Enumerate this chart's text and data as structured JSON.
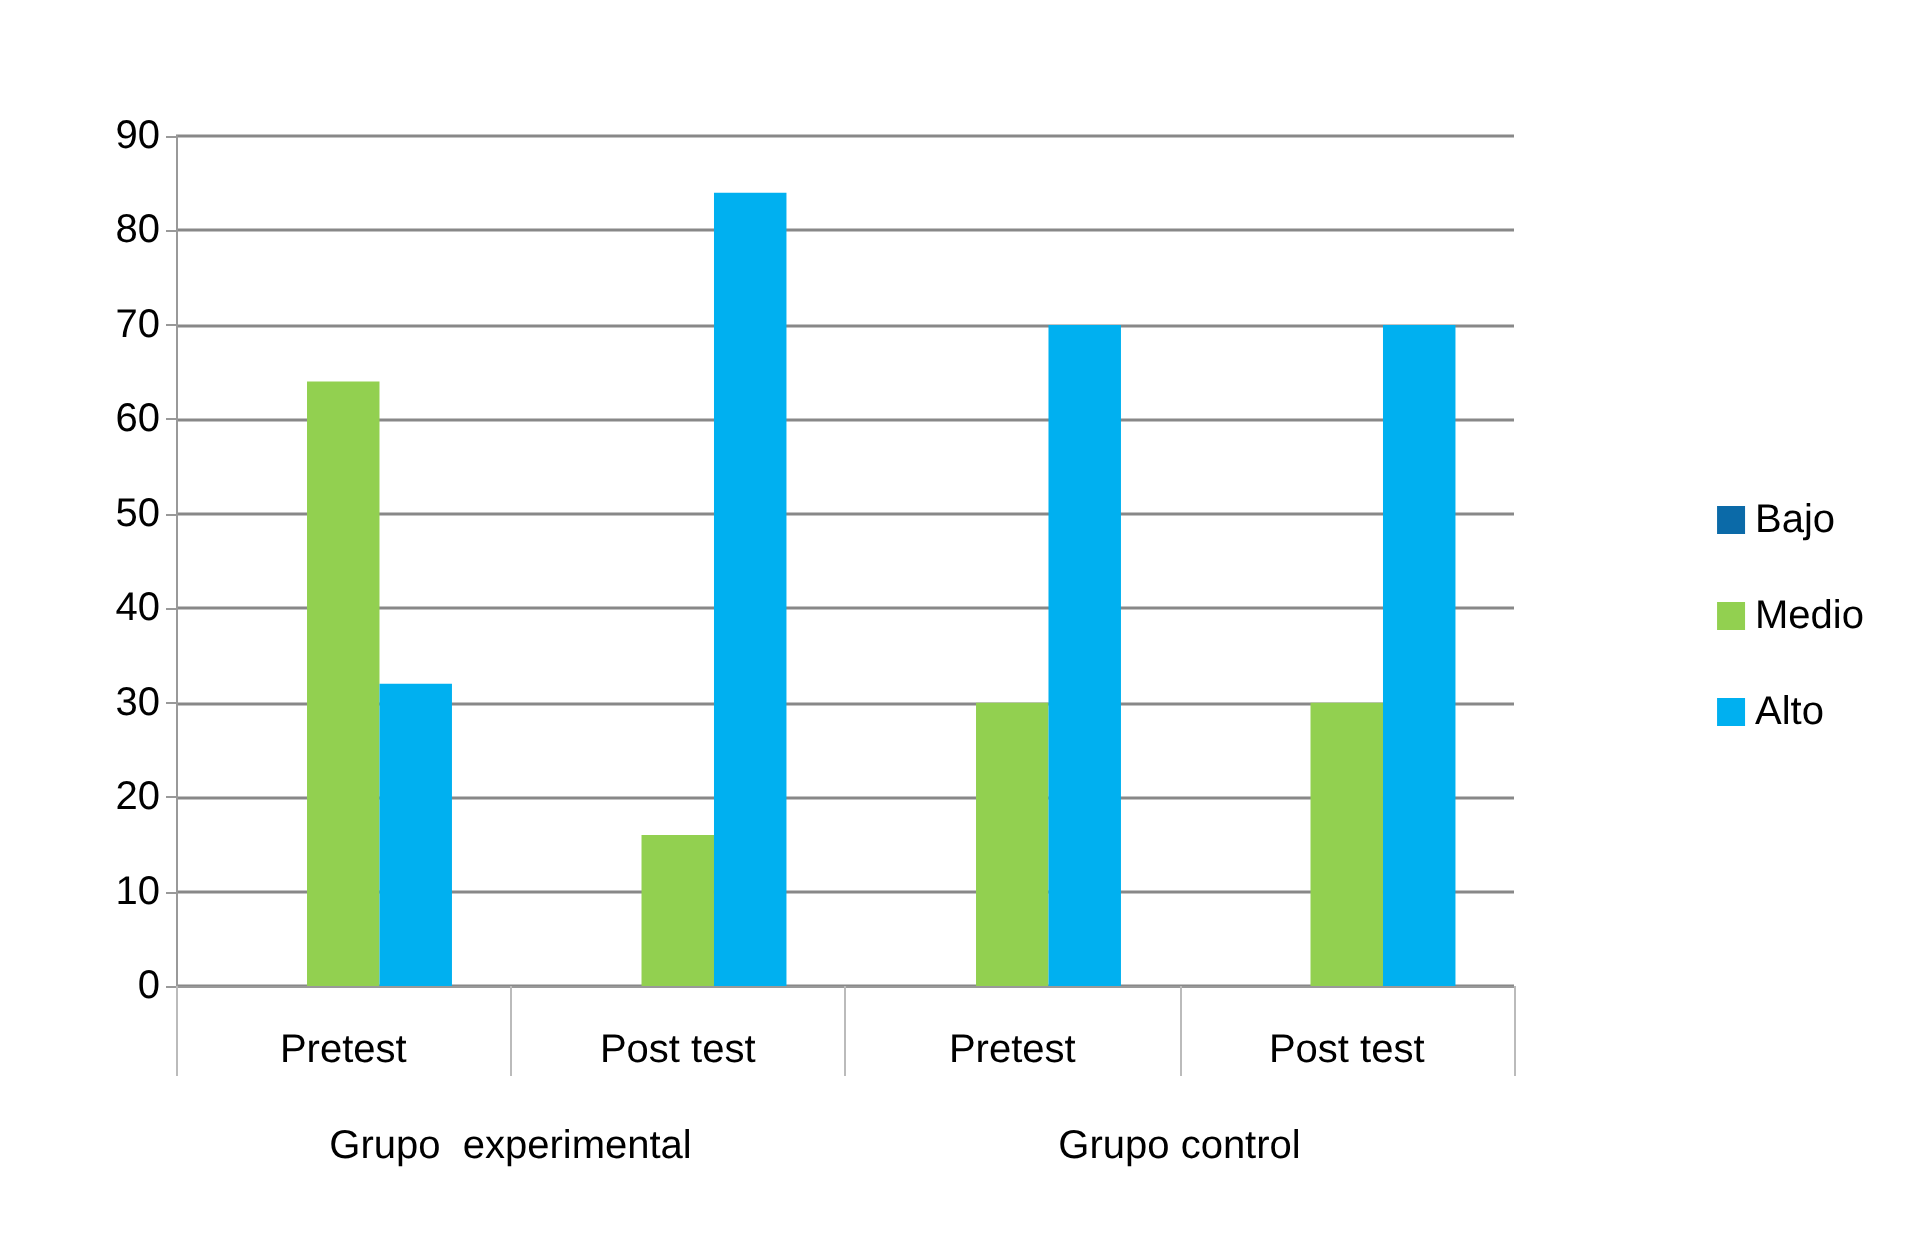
{
  "chart_data": {
    "type": "bar",
    "categories": [
      "Pretest",
      "Post test",
      "Pretest",
      "Post test"
    ],
    "series": [
      {
        "name": "Bajo",
        "color": "#0b6aa8",
        "values": [
          0,
          0,
          0,
          0
        ]
      },
      {
        "name": "Medio",
        "color": "#92d050",
        "values": [
          64,
          16,
          30,
          30
        ]
      },
      {
        "name": "Alto",
        "color": "#00b0f0",
        "values": [
          32,
          84,
          70,
          70
        ]
      }
    ],
    "ylim": [
      0,
      90
    ],
    "yticks": [
      0,
      10,
      20,
      30,
      40,
      50,
      60,
      70,
      80,
      90
    ],
    "grid": "y",
    "legend": "right",
    "annotations": [
      "Grupo  experimental",
      "Grupo control"
    ]
  }
}
